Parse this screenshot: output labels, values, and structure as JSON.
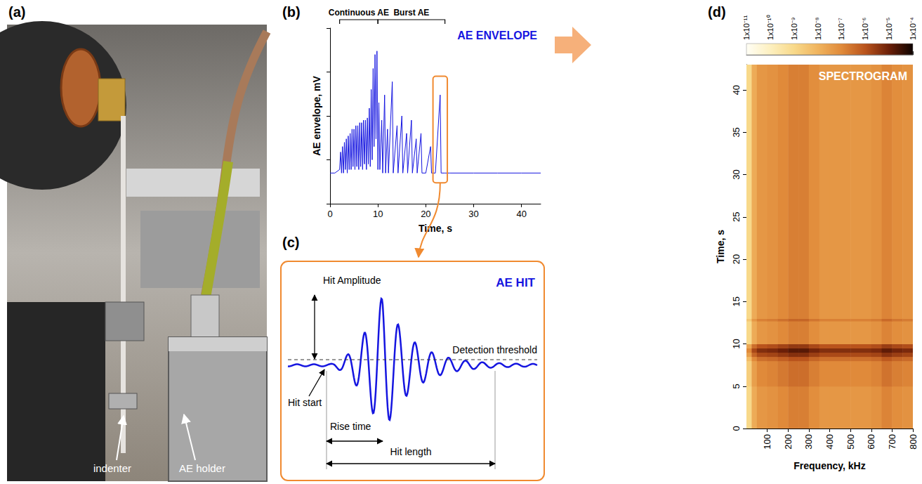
{
  "panels": [
    "(a)",
    "(b)",
    "(c)",
    "(d)"
  ],
  "photo": {
    "labels": [
      "indenter",
      "AE holder"
    ]
  },
  "chart_data": [
    {
      "type": "line",
      "title": "AE ENVELOPE",
      "x_label": "Time, s",
      "y_label": "AE envelope, mV",
      "x": [
        0,
        1,
        2,
        2.2,
        2.4,
        2.6,
        2.8,
        3,
        3.2,
        3.4,
        3.6,
        3.8,
        4,
        4.2,
        4.4,
        4.6,
        4.8,
        5,
        5.2,
        5.4,
        5.6,
        5.8,
        6,
        6.2,
        6.4,
        6.6,
        6.8,
        7,
        7.2,
        7.4,
        7.6,
        7.8,
        8,
        8.2,
        8.4,
        8.6,
        8.8,
        9,
        9.2,
        9.4,
        9.6,
        9.8,
        10,
        10.2,
        10.4,
        10.8,
        11,
        11.4,
        11.6,
        12,
        12.2,
        13,
        13.2,
        14,
        14.2,
        15,
        15.2,
        16,
        16.2,
        17,
        17.2,
        18,
        18.2,
        19,
        19.2,
        20,
        21,
        21.2,
        22,
        23,
        23.2,
        24,
        25,
        30,
        35,
        40,
        44
      ],
      "values": [
        0.5,
        0.5,
        0.6,
        1.5,
        0.5,
        2,
        0.5,
        2.5,
        0.6,
        3,
        0.5,
        3.5,
        0.6,
        4,
        0.6,
        5,
        0.7,
        5,
        0.6,
        6,
        0.7,
        6,
        0.6,
        7,
        0.7,
        7,
        0.6,
        8,
        0.8,
        8,
        0.6,
        9,
        0.8,
        15,
        0.7,
        40,
        1,
        120,
        2,
        250,
        3,
        300,
        0.6,
        20,
        0.6,
        8,
        0.5,
        30,
        0.5,
        5,
        0.5,
        60,
        0.5,
        6,
        0.5,
        10,
        0.5,
        4,
        0.5,
        8,
        0.5,
        3,
        0.5,
        4,
        0.5,
        0.5,
        2,
        0.5,
        0.5,
        30,
        0.5,
        0.5,
        0.5,
        0.5,
        0.5,
        0.5,
        0.5
      ],
      "color": "#1515e0",
      "xlim": [
        0,
        44
      ],
      "xticks": [
        0,
        10,
        20,
        30,
        40
      ],
      "ylim": [
        0.1,
        1000
      ],
      "yticks": [
        0.1,
        1,
        10,
        100,
        1000
      ],
      "log": "y",
      "grid": false,
      "tick_labels": "x",
      "annotations": [
        {
          "text": "Continuous AE",
          "x": [
            2,
            10
          ]
        },
        {
          "text": "Burst AE",
          "x": [
            10,
            24
          ]
        }
      ],
      "highlight": {
        "x": [
          21.5,
          24.5
        ],
        "y": [
          0.3,
          80
        ]
      }
    },
    {
      "type": "heatmap",
      "title": "SPECTROGRAM",
      "x_label": "Frequency, kHz",
      "y_label": "Time, s",
      "freq_bins": [
        0,
        25,
        50,
        100,
        150,
        200,
        250,
        300,
        350,
        400,
        500,
        600,
        650,
        700,
        750,
        800
      ],
      "time_bins": [
        0,
        5,
        8,
        8.5,
        9,
        9.5,
        10,
        12.7,
        13,
        43
      ],
      "cells": [
        [
          1e-09,
          1.6e-08,
          5e-08,
          6.3e-08,
          1e-07,
          1.6e-07,
          1.6e-07,
          8e-08,
          5e-08,
          5e-08,
          5e-08,
          6.3e-08,
          1.3e-07,
          8e-08,
          6.3e-08
        ],
        [
          2e-09,
          3.2e-08,
          1e-07,
          1.3e-07,
          2e-07,
          3.2e-07,
          3.2e-07,
          1.6e-07,
          1e-07,
          1e-07,
          1e-07,
          1.3e-07,
          2.6e-07,
          1.6e-07,
          1.3e-07
        ],
        [
          6e-09,
          1e-07,
          3e-07,
          3.8e-07,
          6e-07,
          1e-06,
          1e-06,
          4.8e-07,
          3e-07,
          3e-07,
          3e-07,
          3.8e-07,
          7.8e-07,
          4.8e-07,
          3.8e-07
        ],
        [
          3e-08,
          4.8e-07,
          1.5e-06,
          1.9e-06,
          3e-06,
          4.8e-06,
          4.8e-06,
          2.4e-06,
          1.5e-06,
          1.5e-06,
          1.5e-06,
          1.9e-06,
          3.9e-06,
          2.4e-06,
          1.9e-06
        ],
        [
          1e-07,
          1.6e-06,
          5e-06,
          6.3e-06,
          1e-05,
          1.6e-05,
          1.6e-05,
          8e-06,
          5e-06,
          5e-06,
          5e-06,
          6.3e-06,
          1.3e-05,
          8e-06,
          6.3e-06
        ],
        [
          2e-08,
          3.2e-07,
          1e-06,
          1.3e-06,
          2e-06,
          3.2e-06,
          3.2e-06,
          1.6e-06,
          1e-06,
          1e-06,
          1e-06,
          1.3e-06,
          2.6e-06,
          1.6e-06,
          1.3e-06
        ],
        [
          1e-09,
          1.6e-08,
          5e-08,
          6.3e-08,
          1e-07,
          1.6e-07,
          1.6e-07,
          8e-08,
          5e-08,
          5e-08,
          5e-08,
          6.3e-08,
          1.3e-07,
          8e-08,
          6.3e-08
        ],
        [
          3e-09,
          4.8e-08,
          1.5e-07,
          1.9e-07,
          3e-07,
          4.8e-07,
          4.8e-07,
          2.4e-07,
          1.5e-07,
          1.5e-07,
          1.5e-07,
          1.9e-07,
          3.9e-07,
          2.4e-07,
          1.9e-07
        ],
        [
          1e-09,
          1.6e-08,
          5e-08,
          6.3e-08,
          1e-07,
          1.6e-07,
          1.6e-07,
          8e-08,
          5e-08,
          5e-08,
          5e-08,
          6.3e-08,
          1.3e-07,
          8e-08,
          6.3e-08
        ]
      ],
      "xlim": [
        0,
        800
      ],
      "xticks": [
        100,
        200,
        300,
        400,
        500,
        600,
        700,
        800
      ],
      "ylim": [
        0,
        43
      ],
      "yticks": [
        0,
        5,
        10,
        15,
        20,
        25,
        30,
        35,
        40
      ],
      "grid": false,
      "colorbar": {
        "range": [
          1e-11,
          0.0001
        ],
        "ticks": [
          {
            "value": 1e-11,
            "label": "1x10⁻¹¹"
          },
          {
            "value": 1e-10,
            "label": "1x10⁻¹⁰"
          },
          {
            "value": 1e-09,
            "label": "1x10⁻⁹"
          },
          {
            "value": 1e-08,
            "label": "1x10⁻⁸"
          },
          {
            "value": 1e-07,
            "label": "1x10⁻⁷"
          },
          {
            "value": 1e-06,
            "label": "1x10⁻⁶"
          },
          {
            "value": 1e-05,
            "label": "1x10⁻⁵"
          },
          {
            "value": 0.0001,
            "label": "1x10⁻⁴"
          }
        ]
      }
    }
  ],
  "diagram": {
    "title": "AE HIT",
    "amplitude": "Hit Amplitude",
    "threshold": "Detection threshold",
    "start": "Hit start",
    "rise": "Rise time",
    "length": "Hit length"
  }
}
